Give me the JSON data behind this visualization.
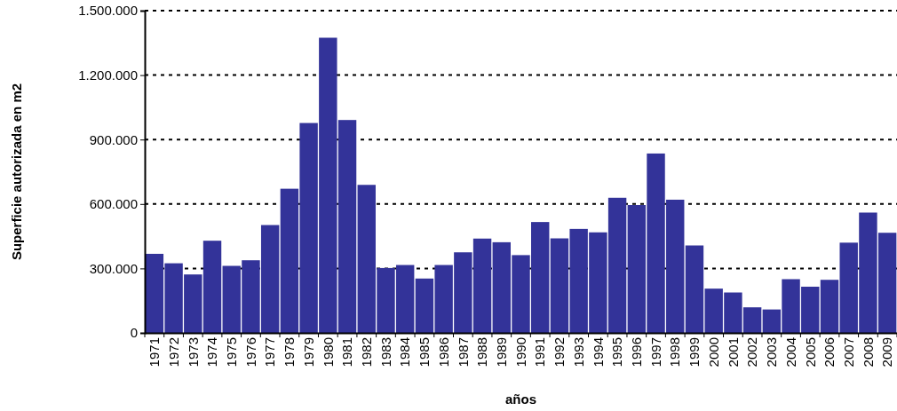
{
  "chart_data": {
    "type": "bar",
    "xlabel": "años",
    "ylabel": "Superficie autorizada en m2",
    "categories": [
      "1971",
      "1972",
      "1973",
      "1974",
      "1975",
      "1976",
      "1977",
      "1978",
      "1979",
      "1980",
      "1981",
      "1982",
      "1983",
      "1984",
      "1985",
      "1986",
      "1987",
      "1988",
      "1989",
      "1990",
      "1991",
      "1992",
      "1993",
      "1994",
      "1995",
      "1996",
      "1997",
      "1998",
      "1999",
      "2000",
      "2001",
      "2002",
      "2003",
      "2004",
      "2005",
      "2006",
      "2007",
      "2008",
      "2009"
    ],
    "values": [
      368000,
      324000,
      272000,
      429000,
      312000,
      338000,
      502000,
      671000,
      977000,
      1374000,
      991000,
      689000,
      302000,
      316000,
      253000,
      316000,
      375000,
      439000,
      422000,
      362000,
      516000,
      440000,
      484000,
      468000,
      629000,
      595000,
      835000,
      620000,
      407000,
      206000,
      188000,
      119000,
      109000,
      250000,
      215000,
      247000,
      420000,
      560000,
      466000
    ],
    "color": "#333399",
    "ylim": [
      0,
      1500000
    ],
    "yticks": [
      0,
      {
        "value": 300000,
        "label": "300.000"
      },
      {
        "value": 600000,
        "label": "600.000"
      },
      {
        "value": 900000,
        "label": "900.000"
      },
      {
        "value": 1200000,
        "label": "1.200.000"
      },
      {
        "value": 1500000,
        "label": "1.500.000"
      }
    ],
    "grid": "y"
  }
}
